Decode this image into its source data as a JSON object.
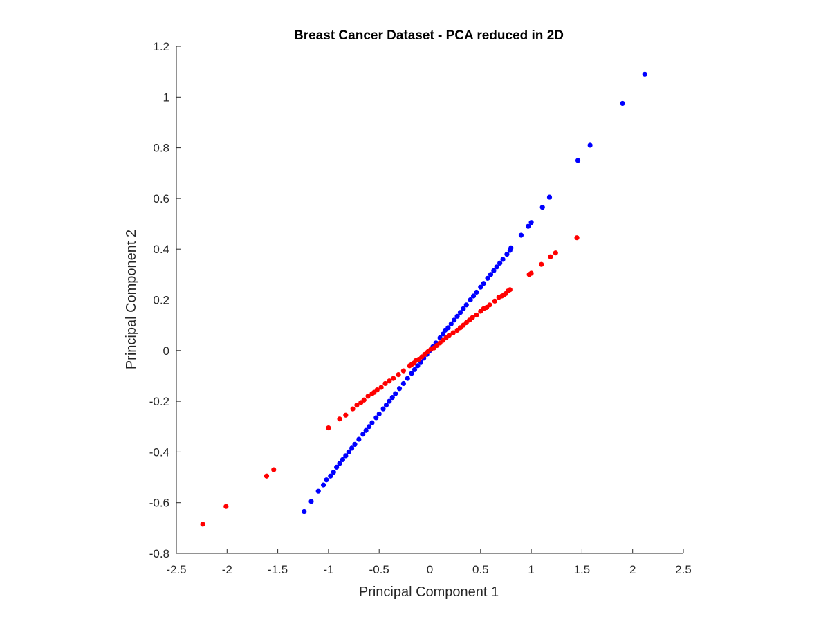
{
  "chart_data": {
    "type": "scatter",
    "title": "Breast Cancer Dataset - PCA reduced in 2D",
    "xlabel": "Principal Component 1",
    "ylabel": "Principal Component 2",
    "xlim": [
      -2.5,
      2.5
    ],
    "ylim": [
      -0.8,
      1.2
    ],
    "xticks": [
      -2.5,
      -2,
      -1.5,
      -1,
      -0.5,
      0,
      0.5,
      1,
      1.5,
      2,
      2.5
    ],
    "xtick_labels": [
      "-2.5",
      "-2",
      "-1.5",
      "-1",
      "-0.5",
      "0",
      "0.5",
      "1",
      "1.5",
      "2",
      "2.5"
    ],
    "yticks": [
      -0.8,
      -0.6,
      -0.4,
      -0.2,
      0,
      0.2,
      0.4,
      0.6,
      0.8,
      1,
      1.2
    ],
    "ytick_labels": [
      "-0.8",
      "-0.6",
      "-0.4",
      "-0.2",
      "0",
      "0.2",
      "0.4",
      "0.6",
      "0.8",
      "1",
      "1.2"
    ],
    "grid": false,
    "legend": "none",
    "series": [
      {
        "color": "#0000ff",
        "points": [
          [
            -1.24,
            -0.635
          ],
          [
            -1.17,
            -0.595
          ],
          [
            -1.1,
            -0.555
          ],
          [
            -1.05,
            -0.53
          ],
          [
            -1.02,
            -0.51
          ],
          [
            -0.98,
            -0.495
          ],
          [
            -0.95,
            -0.48
          ],
          [
            -0.92,
            -0.46
          ],
          [
            -0.89,
            -0.445
          ],
          [
            -0.86,
            -0.43
          ],
          [
            -0.83,
            -0.415
          ],
          [
            -0.8,
            -0.4
          ],
          [
            -0.77,
            -0.385
          ],
          [
            -0.74,
            -0.37
          ],
          [
            -0.7,
            -0.35
          ],
          [
            -0.66,
            -0.33
          ],
          [
            -0.63,
            -0.315
          ],
          [
            -0.6,
            -0.3
          ],
          [
            -0.57,
            -0.285
          ],
          [
            -0.53,
            -0.265
          ],
          [
            -0.5,
            -0.25
          ],
          [
            -0.46,
            -0.23
          ],
          [
            -0.43,
            -0.215
          ],
          [
            -0.4,
            -0.2
          ],
          [
            -0.37,
            -0.185
          ],
          [
            -0.34,
            -0.17
          ],
          [
            -0.3,
            -0.15
          ],
          [
            -0.26,
            -0.13
          ],
          [
            -0.22,
            -0.11
          ],
          [
            -0.18,
            -0.09
          ],
          [
            -0.15,
            -0.075
          ],
          [
            -0.12,
            -0.06
          ],
          [
            -0.09,
            -0.045
          ],
          [
            -0.06,
            -0.03
          ],
          [
            -0.03,
            -0.015
          ],
          [
            0.0,
            0.0
          ],
          [
            0.03,
            0.015
          ],
          [
            0.06,
            0.03
          ],
          [
            0.1,
            0.05
          ],
          [
            0.13,
            0.065
          ],
          [
            0.15,
            0.08
          ],
          [
            0.18,
            0.09
          ],
          [
            0.21,
            0.105
          ],
          [
            0.24,
            0.12
          ],
          [
            0.27,
            0.135
          ],
          [
            0.3,
            0.15
          ],
          [
            0.33,
            0.165
          ],
          [
            0.36,
            0.18
          ],
          [
            0.4,
            0.2
          ],
          [
            0.43,
            0.215
          ],
          [
            0.46,
            0.23
          ],
          [
            0.5,
            0.25
          ],
          [
            0.53,
            0.265
          ],
          [
            0.57,
            0.285
          ],
          [
            0.6,
            0.3
          ],
          [
            0.63,
            0.315
          ],
          [
            0.66,
            0.33
          ],
          [
            0.69,
            0.345
          ],
          [
            0.72,
            0.36
          ],
          [
            0.76,
            0.38
          ],
          [
            0.79,
            0.395
          ],
          [
            0.8,
            0.405
          ],
          [
            0.9,
            0.455
          ],
          [
            0.97,
            0.49
          ],
          [
            1.0,
            0.505
          ],
          [
            1.11,
            0.565
          ],
          [
            1.18,
            0.605
          ],
          [
            1.46,
            0.75
          ],
          [
            1.58,
            0.81
          ],
          [
            1.9,
            0.975
          ],
          [
            2.12,
            1.09
          ]
        ]
      },
      {
        "color": "#ff0000",
        "points": [
          [
            -2.24,
            -0.685
          ],
          [
            -2.01,
            -0.615
          ],
          [
            -1.61,
            -0.495
          ],
          [
            -1.54,
            -0.47
          ],
          [
            -1.0,
            -0.305
          ],
          [
            -0.89,
            -0.27
          ],
          [
            -0.83,
            -0.255
          ],
          [
            -0.76,
            -0.23
          ],
          [
            -0.72,
            -0.215
          ],
          [
            -0.68,
            -0.205
          ],
          [
            -0.65,
            -0.195
          ],
          [
            -0.61,
            -0.18
          ],
          [
            -0.57,
            -0.17
          ],
          [
            -0.55,
            -0.165
          ],
          [
            -0.52,
            -0.155
          ],
          [
            -0.48,
            -0.145
          ],
          [
            -0.44,
            -0.13
          ],
          [
            -0.4,
            -0.12
          ],
          [
            -0.36,
            -0.11
          ],
          [
            -0.31,
            -0.095
          ],
          [
            -0.26,
            -0.08
          ],
          [
            -0.2,
            -0.06
          ],
          [
            -0.18,
            -0.055
          ],
          [
            -0.16,
            -0.05
          ],
          [
            -0.14,
            -0.04
          ],
          [
            -0.11,
            -0.035
          ],
          [
            -0.08,
            -0.025
          ],
          [
            -0.05,
            -0.015
          ],
          [
            -0.02,
            -0.005
          ],
          [
            0.01,
            0.005
          ],
          [
            0.04,
            0.01
          ],
          [
            0.07,
            0.02
          ],
          [
            0.1,
            0.03
          ],
          [
            0.13,
            0.04
          ],
          [
            0.16,
            0.05
          ],
          [
            0.19,
            0.06
          ],
          [
            0.23,
            0.07
          ],
          [
            0.27,
            0.08
          ],
          [
            0.3,
            0.09
          ],
          [
            0.33,
            0.1
          ],
          [
            0.36,
            0.11
          ],
          [
            0.39,
            0.12
          ],
          [
            0.42,
            0.13
          ],
          [
            0.46,
            0.14
          ],
          [
            0.5,
            0.155
          ],
          [
            0.53,
            0.165
          ],
          [
            0.56,
            0.17
          ],
          [
            0.59,
            0.18
          ],
          [
            0.64,
            0.195
          ],
          [
            0.68,
            0.21
          ],
          [
            0.71,
            0.215
          ],
          [
            0.73,
            0.22
          ],
          [
            0.75,
            0.225
          ],
          [
            0.77,
            0.235
          ],
          [
            0.79,
            0.24
          ],
          [
            0.98,
            0.3
          ],
          [
            1.0,
            0.305
          ],
          [
            1.1,
            0.34
          ],
          [
            1.19,
            0.37
          ],
          [
            1.24,
            0.385
          ],
          [
            1.45,
            0.445
          ]
        ]
      }
    ]
  }
}
